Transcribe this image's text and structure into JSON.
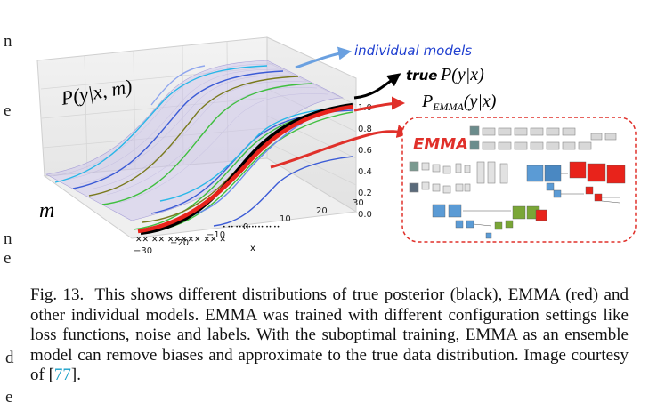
{
  "figure": {
    "labels": {
      "p_given_xm": "P(y|x, m)",
      "m_axis": "m",
      "x_axis": "x",
      "individual_models": "individual models",
      "true_label": "true",
      "true_p": "P(y|x)",
      "p_emma": "P",
      "p_emma_sub": "EMMA",
      "p_emma_tail": "(y|x)",
      "emma_box_title": "EMMA"
    },
    "colors": {
      "true_posterior": "#000000",
      "emma": "#e8231b",
      "individual_blue": "#3b5bd6",
      "individual_green": "#3fbf3f",
      "individual_cyan": "#27b7e8",
      "individual_olive": "#7a7a1e",
      "label_blue": "#1f3fd0",
      "callout_red": "#e0302a"
    }
  },
  "chart_data": {
    "type": "line",
    "title": "",
    "xlabel": "x",
    "ylabel": "",
    "zlabel": "m",
    "x_ticks": [
      "−30",
      "−20",
      "−10",
      "0",
      "10",
      "20",
      "30"
    ],
    "y_ticks": [
      "0.0",
      "0.2",
      "0.4",
      "0.6",
      "0.8",
      "1.0"
    ],
    "xlim": [
      -30,
      30
    ],
    "ylim": [
      0,
      1
    ],
    "grid": true,
    "series": [
      {
        "name": "true P(y|x)",
        "kind": "sigmoid",
        "center": 0,
        "slope": 0.17
      },
      {
        "name": "P_EMMA(y|x)",
        "kind": "sigmoid",
        "center": 0,
        "slope": 0.15
      },
      {
        "name": "individual models",
        "kind": "sigmoid_family",
        "count": 10
      }
    ]
  },
  "caption": {
    "prefix": "Fig. 13.",
    "body": "This shows different distributions of true posterior (black), EMMA (red) and other individual models. EMMA was trained with different configuration settings like loss functions, noise and labels. With the suboptimal training, EMMA as an ensemble model can remove biases and approximate to the true data distribution. Image courtesy of [",
    "ref": "77",
    "suffix": "]."
  },
  "edge_fragments": [
    "n",
    "e",
    "n",
    "e",
    "d",
    "e"
  ]
}
